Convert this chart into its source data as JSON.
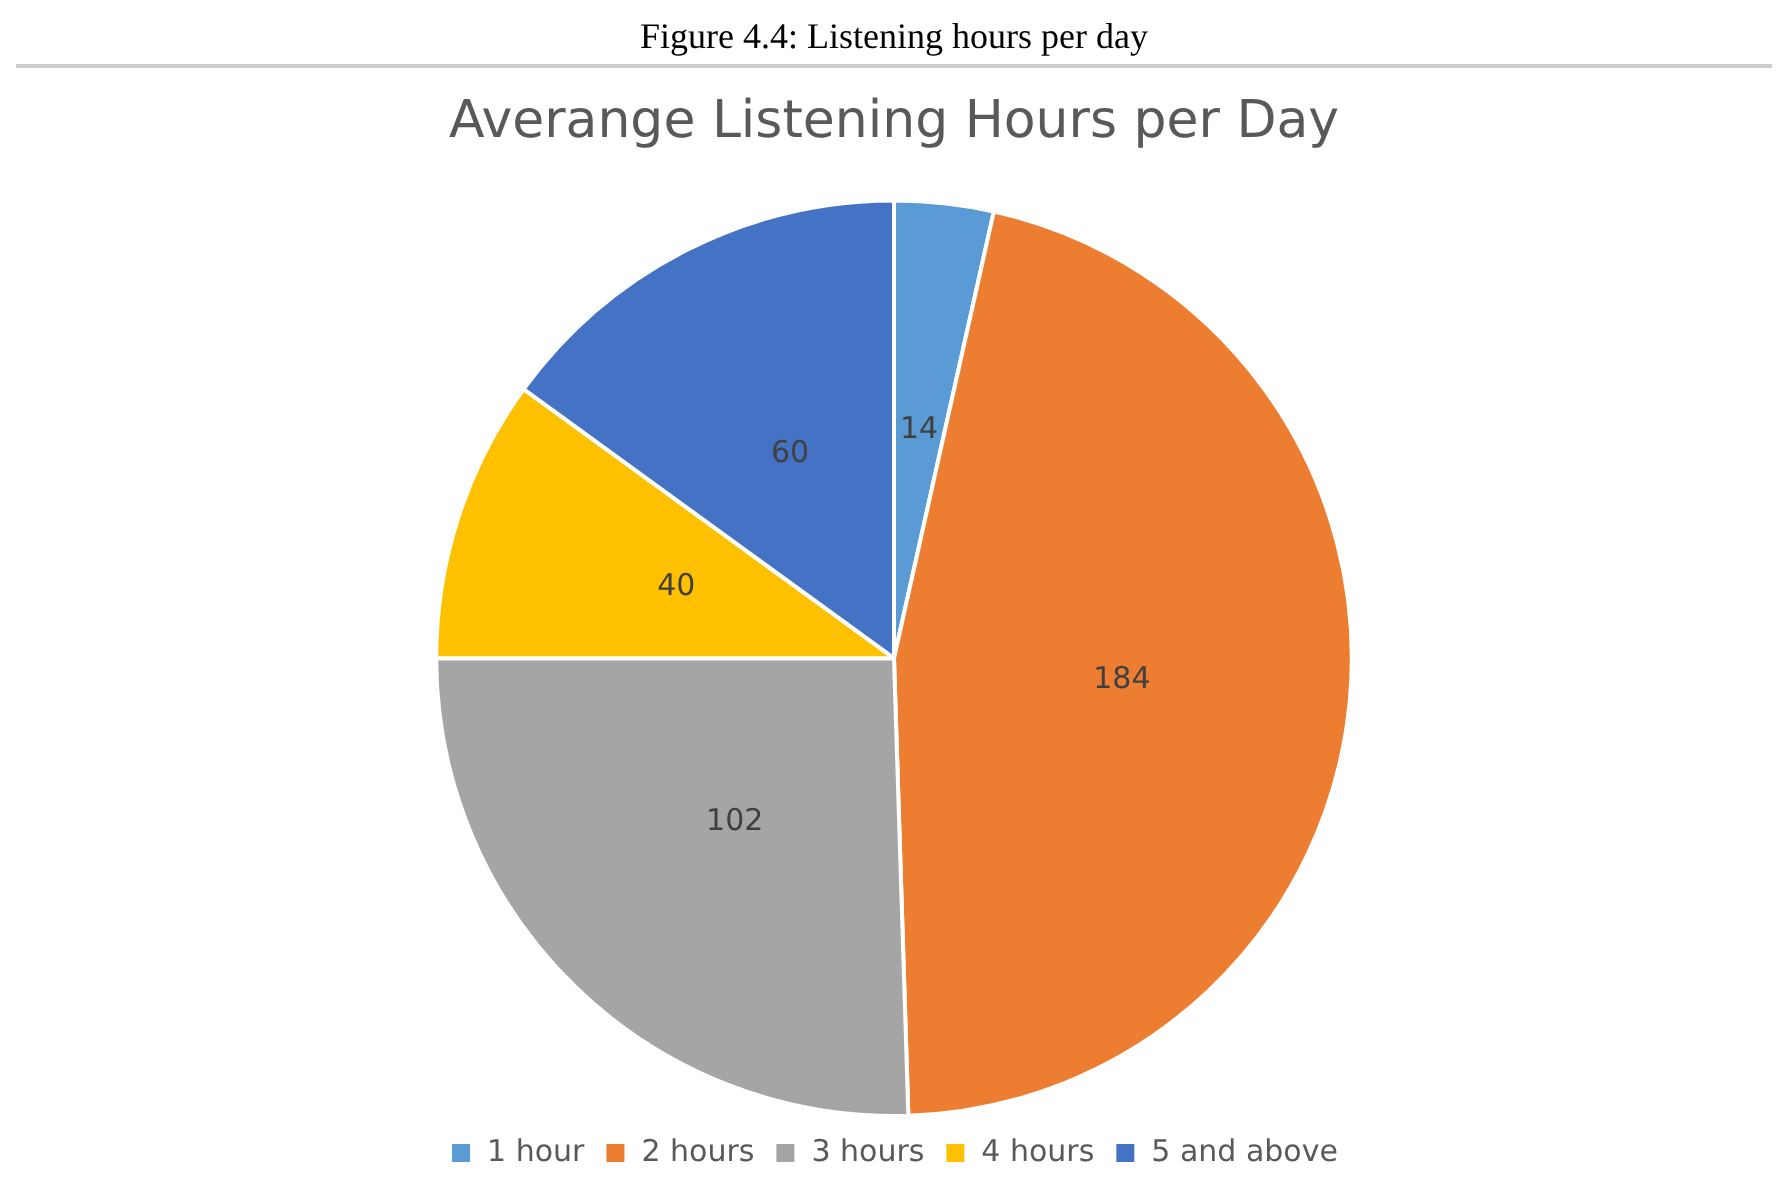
{
  "chart_data": {
    "type": "pie",
    "title": "Averange Listening Hours per Day",
    "annotations": [
      "Figure 4.4: Listening hours per day"
    ],
    "categories": [
      "1 hour",
      "2 hours",
      "3 hours",
      "4 hours",
      "5 and above"
    ],
    "values": [
      14,
      184,
      102,
      40,
      60
    ],
    "colors": [
      "#5b9bd5",
      "#ed7d31",
      "#a5a5a5",
      "#ffc000",
      "#4472c4"
    ],
    "data_labels": true,
    "legend": "bottom"
  }
}
